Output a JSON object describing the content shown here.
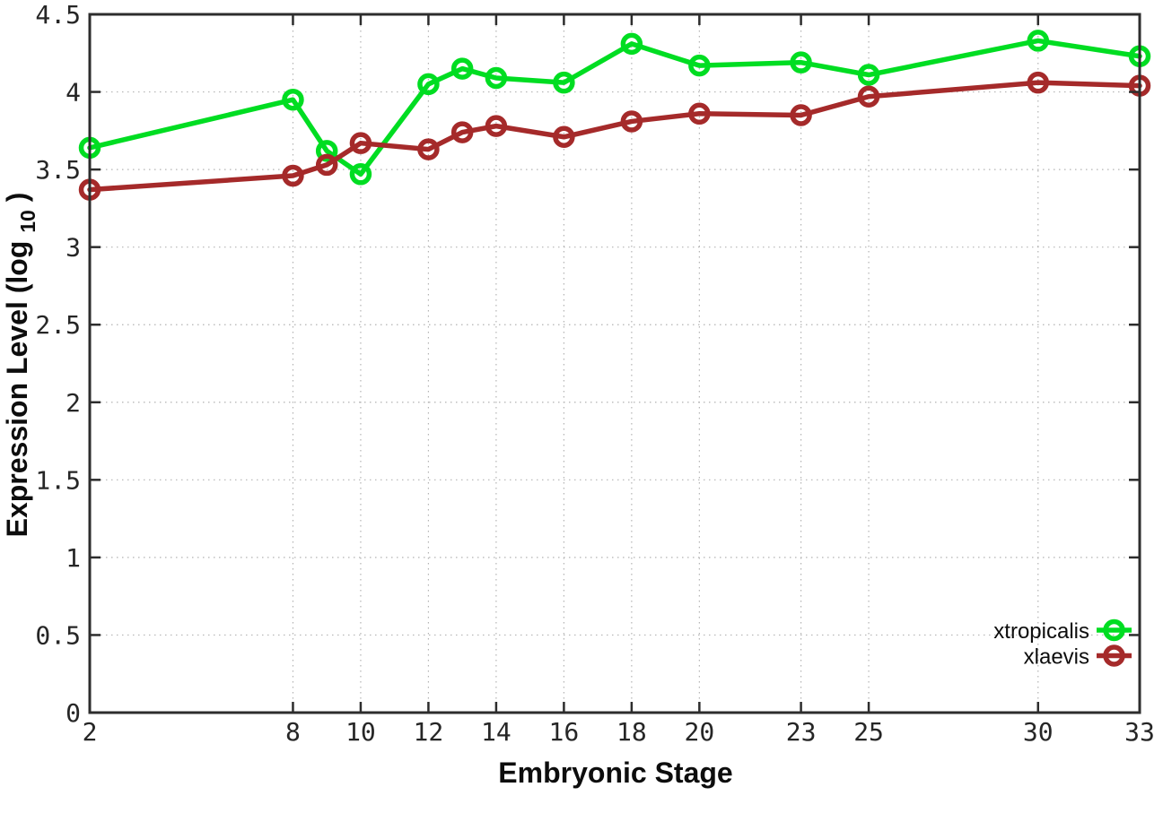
{
  "chart_data": {
    "type": "line",
    "title": "",
    "xlabel": "Embryonic Stage",
    "ylabel": "Expression Level (log10)",
    "ylabel_parts": {
      "main": "Expression Level (log",
      "sub": "10",
      "end": ")"
    },
    "xlim": [
      2,
      33
    ],
    "ylim": [
      0,
      4.5
    ],
    "xticks": [
      2,
      8,
      10,
      12,
      14,
      16,
      18,
      20,
      23,
      25,
      30,
      33
    ],
    "xtick_labels": [
      "2",
      "8",
      "10",
      "12",
      "14",
      "16",
      "18",
      "20",
      "23",
      "25",
      "30",
      "33"
    ],
    "yticks": [
      0,
      0.5,
      1,
      1.5,
      2,
      2.5,
      3,
      3.5,
      4,
      4.5
    ],
    "ytick_labels": [
      "0",
      "0.5",
      "1",
      "1.5",
      "2",
      "2.5",
      "3",
      "3.5",
      "4",
      "4.5"
    ],
    "grid": true,
    "grid_style": "dotted",
    "legend_position": "bottom-right-inside",
    "background_color": "#ffffff",
    "axis_color": "#2d2d2d",
    "grid_color": "#b3b3b3",
    "x": [
      2,
      8,
      9,
      10,
      12,
      13,
      14,
      16,
      18,
      20,
      23,
      25,
      30,
      33
    ],
    "series": [
      {
        "name": "xtropicalis",
        "color": "#00dd22",
        "marker": "open-circle",
        "values": [
          3.64,
          3.95,
          3.62,
          3.47,
          4.05,
          4.15,
          4.09,
          4.06,
          4.31,
          4.17,
          4.19,
          4.11,
          4.33,
          4.23
        ]
      },
      {
        "name": "xlaevis",
        "color": "#a52a2a",
        "marker": "open-circle",
        "values": [
          3.37,
          3.46,
          3.53,
          3.67,
          3.63,
          3.74,
          3.78,
          3.71,
          3.81,
          3.86,
          3.85,
          3.97,
          4.06,
          4.04
        ]
      }
    ]
  }
}
